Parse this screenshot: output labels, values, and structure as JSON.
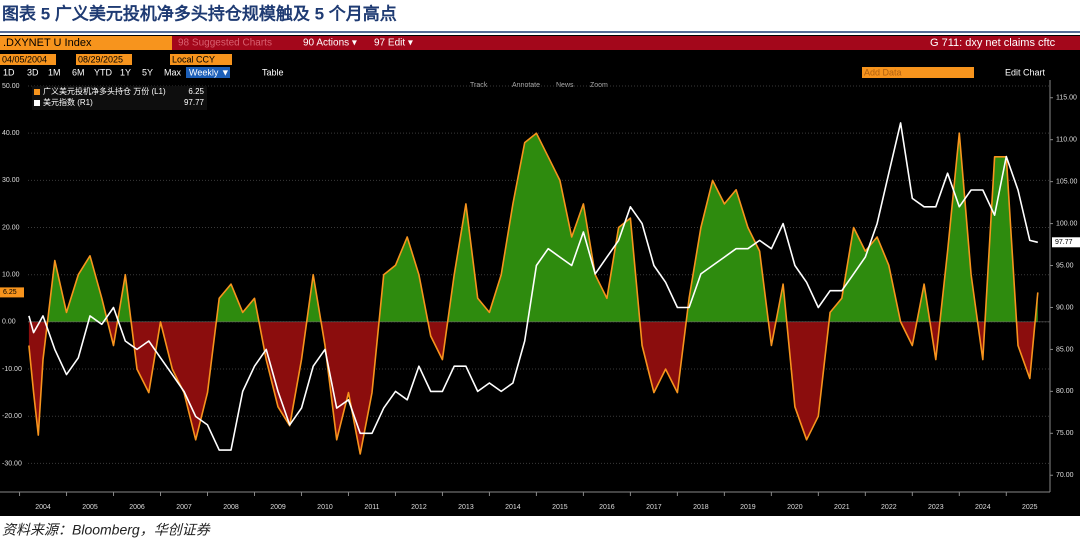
{
  "title": "图表 5 广义美元投机净多头持仓规模触及 5 个月高点",
  "source": "资料来源：Bloomberg，华创证券",
  "toolbar": {
    "ticker": ".DXYNET U Index",
    "suggested": "98 Suggested Charts",
    "actions": "90 Actions ▾",
    "edit": "97 Edit ▾",
    "chart_name": "G 711: dxy net claims cftc",
    "start_date": "04/05/2004",
    "end_date": "08/29/2025",
    "currency": "Local CCY",
    "periods": [
      "1D",
      "3D",
      "1M",
      "6M",
      "YTD",
      "1Y",
      "5Y",
      "Max"
    ],
    "frequency": "Weekly ▼",
    "table": "Table",
    "add_data": "Add Data",
    "edit_chart": "Edit Chart",
    "tools": [
      "Track",
      "Annotate",
      "News",
      "Zoom"
    ]
  },
  "chart_data": {
    "type": "line",
    "x": [
      2004.2,
      2004.3,
      2004.4,
      2004.5,
      2004.75,
      2005,
      2005.25,
      2005.5,
      2005.75,
      2006,
      2006.25,
      2006.5,
      2006.75,
      2007,
      2007.25,
      2007.5,
      2007.75,
      2008,
      2008.25,
      2008.5,
      2008.75,
      2009,
      2009.25,
      2009.5,
      2009.75,
      2010,
      2010.25,
      2010.5,
      2010.75,
      2011,
      2011.25,
      2011.5,
      2011.75,
      2012,
      2012.25,
      2012.5,
      2012.75,
      2013,
      2013.25,
      2013.5,
      2013.75,
      2014,
      2014.25,
      2014.5,
      2014.75,
      2015,
      2015.25,
      2015.5,
      2015.75,
      2016,
      2016.25,
      2016.5,
      2016.75,
      2017,
      2017.25,
      2017.5,
      2017.75,
      2018,
      2018.25,
      2018.5,
      2018.75,
      2019,
      2019.25,
      2019.5,
      2019.75,
      2020,
      2020.25,
      2020.5,
      2020.75,
      2021,
      2021.25,
      2021.5,
      2021.75,
      2022,
      2022.25,
      2022.5,
      2022.75,
      2023,
      2023.25,
      2023.5,
      2023.75,
      2024,
      2024.25,
      2024.5,
      2024.75,
      2025,
      2025.25,
      2025.5,
      2025.67
    ],
    "series": [
      {
        "name": "广义美元投机净多头持仓 万份 (L1)",
        "color": "#f7941d",
        "fill_positive": "#2e8b0e",
        "fill_negative": "#8b0d0d",
        "values": [
          -5,
          -15,
          -24,
          -8,
          13,
          2,
          10,
          14,
          5,
          -5,
          10,
          -10,
          -15,
          0,
          -10,
          -15,
          -25,
          -15,
          5,
          8,
          2,
          5,
          -8,
          -18,
          -22,
          -8,
          10,
          -5,
          -25,
          -15,
          -28,
          -15,
          10,
          12,
          18,
          10,
          -3,
          -8,
          10,
          25,
          5,
          2,
          10,
          25,
          38,
          40,
          35,
          30,
          18,
          25,
          10,
          5,
          20,
          22,
          -5,
          -15,
          -10,
          -15,
          5,
          20,
          30,
          25,
          28,
          20,
          15,
          -5,
          8,
          -18,
          -25,
          -20,
          2,
          5,
          20,
          15,
          18,
          12,
          0,
          -5,
          8,
          -8,
          15,
          40,
          10,
          -8,
          35,
          35,
          -5,
          -12,
          6.25
        ]
      },
      {
        "name": "美元指数 (R1)",
        "color": "#ffffff",
        "axis": "y2",
        "values": [
          89,
          87,
          88,
          89,
          85,
          82,
          84,
          89,
          88,
          90,
          86,
          85,
          86,
          84,
          82,
          80,
          77,
          76,
          73,
          73,
          80,
          83,
          85,
          80,
          76,
          78,
          83,
          85,
          78,
          79,
          75,
          75,
          78,
          80,
          79,
          83,
          80,
          80,
          83,
          83,
          80,
          81,
          80,
          81,
          86,
          95,
          97,
          96,
          95,
          99,
          94,
          96,
          98,
          102,
          100,
          95,
          93,
          90,
          90,
          94,
          95,
          96,
          97,
          97,
          98,
          97,
          100,
          95,
          93,
          90,
          92,
          92,
          94,
          96,
          100,
          106,
          112,
          103,
          102,
          102,
          106,
          102,
          104,
          104,
          101,
          108,
          104,
          98,
          97.77
        ]
      }
    ],
    "xlim": [
      2004.18,
      2025.93
    ],
    "xticks": [
      2004,
      2005,
      2006,
      2007,
      2008,
      2009,
      2010,
      2011,
      2012,
      2013,
      2014,
      2015,
      2016,
      2017,
      2018,
      2019,
      2020,
      2021,
      2022,
      2023,
      2024,
      2025
    ],
    "ylim": [
      -35,
      50
    ],
    "yticks": [
      {
        "value": 50,
        "label": "50.00"
      },
      {
        "value": 40,
        "label": "40.00"
      },
      {
        "value": 30,
        "label": "30.00"
      },
      {
        "value": 20,
        "label": "20.00"
      },
      {
        "value": 10,
        "label": "10.00"
      },
      {
        "value": 0,
        "label": "0.00"
      },
      {
        "value": -10,
        "label": "-10.00"
      },
      {
        "value": -20,
        "label": "-20.00"
      },
      {
        "value": -30,
        "label": "-30.00"
      }
    ],
    "y2lim": [
      68.6,
      116.4
    ],
    "y2ticks": [
      {
        "value": 115,
        "label": "115.00"
      },
      {
        "value": 110,
        "label": "110.00"
      },
      {
        "value": 105,
        "label": "105.00"
      },
      {
        "value": 100,
        "label": "100.00"
      },
      {
        "value": 95,
        "label": "95.00"
      },
      {
        "value": 90,
        "label": "90.00"
      },
      {
        "value": 85,
        "label": "85.00"
      },
      {
        "value": 80,
        "label": "80.00"
      },
      {
        "value": 75,
        "label": "75.00"
      },
      {
        "value": 70,
        "label": "70.00"
      }
    ],
    "grid": true,
    "legend": "upper left"
  }
}
